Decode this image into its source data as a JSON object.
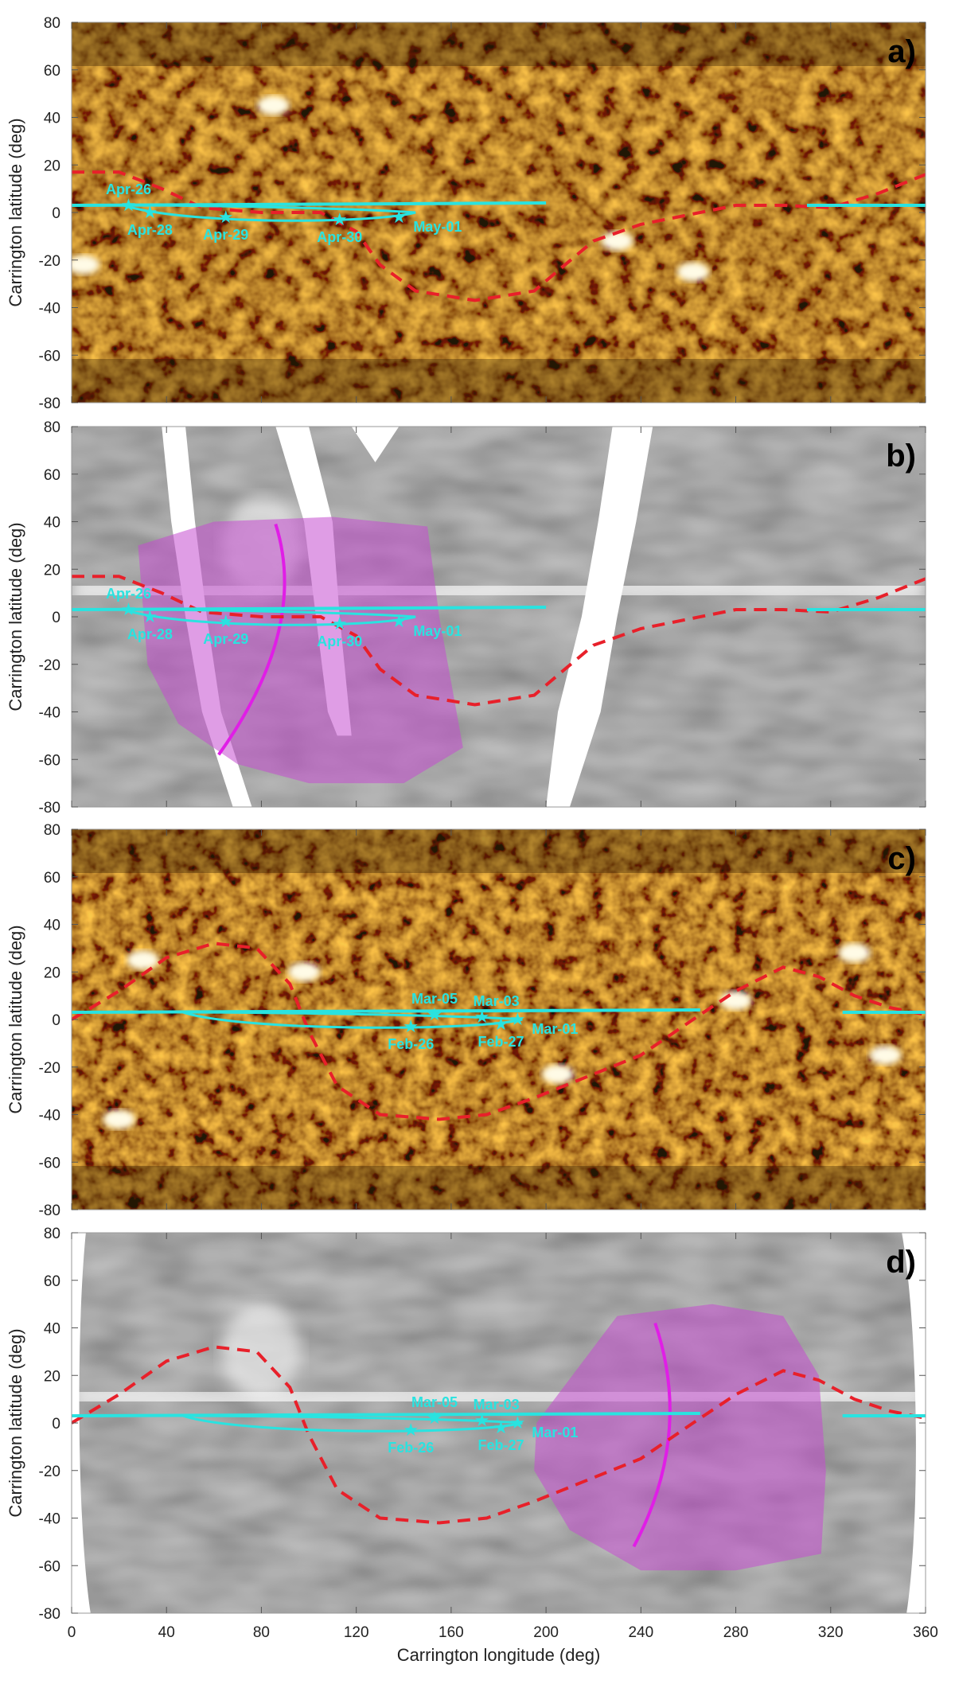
{
  "x_axis": {
    "label": "Carrington longitude (deg)",
    "range": [
      0,
      360
    ],
    "ticks": [
      "0",
      "40",
      "80",
      "120",
      "160",
      "200",
      "240",
      "280",
      "320",
      "360"
    ]
  },
  "y_axis": {
    "label": "Carrington latitude (deg)",
    "range": [
      -80,
      80
    ],
    "ticks": [
      "80",
      "60",
      "40",
      "20",
      "0",
      "-20",
      "-40",
      "-60",
      "-80"
    ]
  },
  "colors": {
    "trajectory": "#29e3e0",
    "current_sheet": "#e8202a",
    "footprint": "#e01ee6",
    "shade": "#c54dd0",
    "euv_map": "#d9a024",
    "white_light_map": "#8f8f8f"
  },
  "panels": [
    {
      "label": "a)",
      "map": "euv",
      "shade": false,
      "dates": [
        {
          "text": "Apr-26",
          "lon": 24,
          "lat": 3,
          "pos": "above"
        },
        {
          "text": "Apr-28",
          "lon": 33,
          "lat": 0,
          "pos": "below"
        },
        {
          "text": "Apr-29",
          "lon": 65,
          "lat": -2,
          "pos": "below"
        },
        {
          "text": "Apr-30",
          "lon": 113,
          "lat": -3,
          "pos": "below"
        },
        {
          "text": "May-01",
          "lon": 138,
          "lat": -2,
          "pos": "right"
        }
      ]
    },
    {
      "label": "b)",
      "map": "wl",
      "shade": true,
      "dates": [
        {
          "text": "Apr-26",
          "lon": 24,
          "lat": 3,
          "pos": "above"
        },
        {
          "text": "Apr-28",
          "lon": 33,
          "lat": 0,
          "pos": "below"
        },
        {
          "text": "Apr-29",
          "lon": 65,
          "lat": -2,
          "pos": "below"
        },
        {
          "text": "Apr-30",
          "lon": 113,
          "lat": -3,
          "pos": "below"
        },
        {
          "text": "May-01",
          "lon": 138,
          "lat": -2,
          "pos": "right"
        }
      ]
    },
    {
      "label": "c)",
      "map": "euv",
      "shade": false,
      "dates": [
        {
          "text": "Mar-05",
          "lon": 153,
          "lat": 2,
          "pos": "above"
        },
        {
          "text": "Mar-03",
          "lon": 173,
          "lat": 1,
          "pos": "above-right"
        },
        {
          "text": "Feb-26",
          "lon": 143,
          "lat": -3,
          "pos": "below"
        },
        {
          "text": "Feb-27",
          "lon": 181,
          "lat": -2,
          "pos": "below"
        },
        {
          "text": "Mar-01",
          "lon": 188,
          "lat": 0,
          "pos": "right"
        }
      ]
    },
    {
      "label": "d)",
      "map": "wl",
      "shade": true,
      "dates": [
        {
          "text": "Mar-05",
          "lon": 153,
          "lat": 2,
          "pos": "above"
        },
        {
          "text": "Mar-03",
          "lon": 173,
          "lat": 1,
          "pos": "above-right"
        },
        {
          "text": "Feb-26",
          "lon": 143,
          "lat": -3,
          "pos": "below"
        },
        {
          "text": "Feb-27",
          "lon": 181,
          "lat": -2,
          "pos": "below"
        },
        {
          "text": "Mar-01",
          "lon": 188,
          "lat": 0,
          "pos": "right"
        }
      ]
    }
  ]
}
